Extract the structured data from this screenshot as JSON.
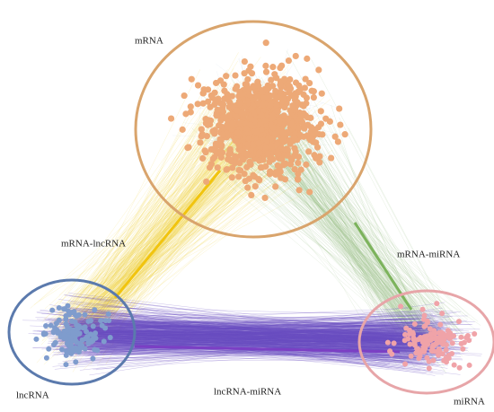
{
  "nodes": [
    {
      "label": "mRNA"
    },
    {
      "label": "lncRNA"
    },
    {
      "label": "miRNA"
    }
  ],
  "edges": [
    {
      "label": "mRNA-lncRNA"
    },
    {
      "label": "mRNA-miRNA"
    },
    {
      "label": "lncRNA-miRNA"
    }
  ]
}
